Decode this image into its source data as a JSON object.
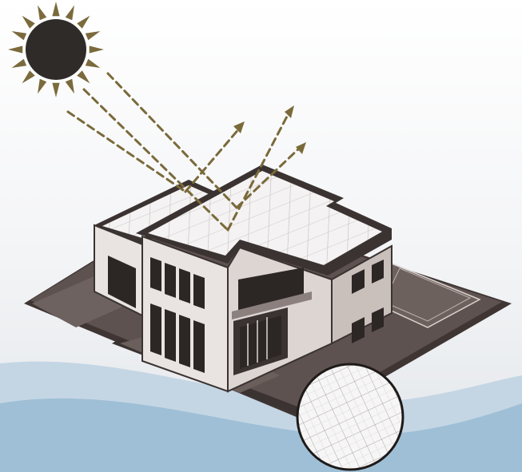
{
  "colors": {
    "sky_top": "#ffffff",
    "sky_bottom": "#e2e6ea",
    "wave_light": "#c4d6e4",
    "wave_dark": "#9fbfd6",
    "sun": "#2f2b28",
    "sun_rays": "#7b6a3c",
    "heat_arrows": "#7a6a3a",
    "roof": "#f4f2f2",
    "roof_grid": "#c9c4c4",
    "wall_front": "#e9e4e1",
    "wall_side": "#c9bfbb",
    "outline": "#3a3331",
    "ground": "#5e5250",
    "ground_dark": "#3f3533",
    "window": "#2c2624"
  },
  "icons": {
    "sun": "sun-icon",
    "arrows": "reflected-heat-arrow-icon",
    "magnifier": "roof-texture-magnifier"
  }
}
